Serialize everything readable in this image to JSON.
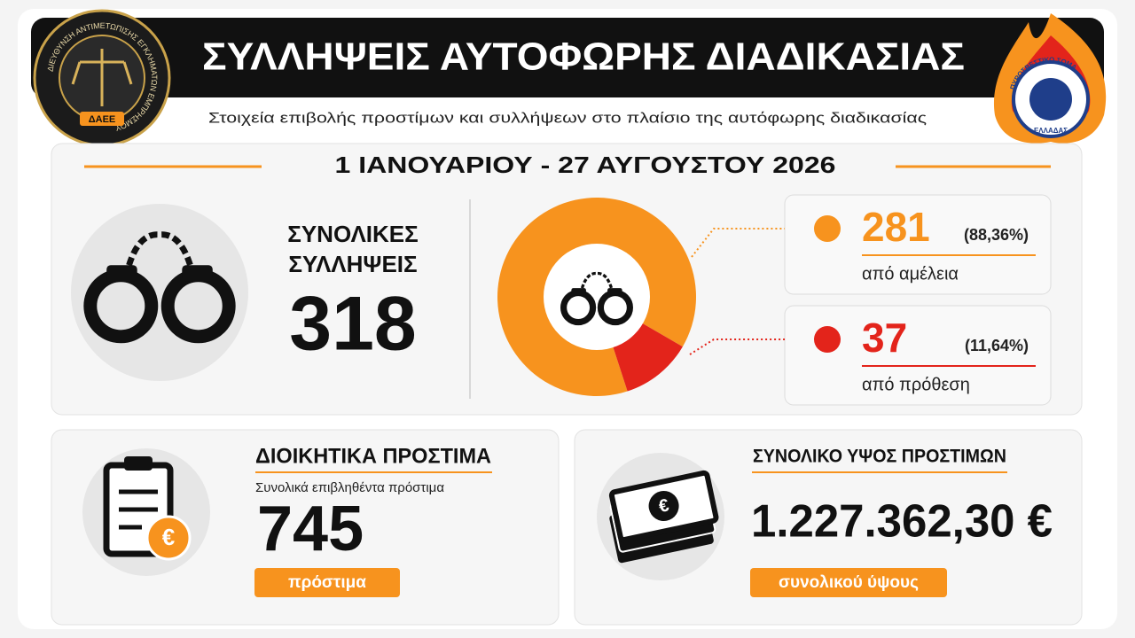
{
  "header": {
    "title": "ΣΥΛΛΗΨΕΙΣ ΑΥΤΟΦΩΡΗΣ ΔΙΑΔΙΚΑΣΙΑΣ",
    "subtitle": "Στοιχεία επιβολής προστίμων και συλλήψεων στο πλαίσιο της αυτόφωρης διαδικασίας"
  },
  "logos": {
    "left_ring": "ΔΙΕΥΘΥΝΣΗ ΑΝΤΙΜΕΤΩΠΙΣΗΣ ΕΓΚΛΗΜΑΤΩΝ ΕΜΠΡΗΣΜΟΥ",
    "left_badge": "ΔΑΕΕ",
    "right_ring": "ΠΥΡΟΣΒΕΣΤΙΚΟ ΣΩΜΑ",
    "right_bottom": "ΕΛΛΑΔΑΣ"
  },
  "period": "1 ΙΑΝΟΥΑΡΙΟΥ - 27 ΑΥΓΟΥΣΤΟΥ 2026",
  "arrests": {
    "label_line1": "ΣΥΝΟΛΙΚΕΣ",
    "label_line2": "ΣΥΛΛΗΨΕΙΣ",
    "total": 318
  },
  "breakdown": [
    {
      "value": 281,
      "percent_label": "(88,36%)",
      "label": "από αμέλεια",
      "color": "#f7931e"
    },
    {
      "value": 37,
      "percent_label": "(11,64%)",
      "label": "από πρόθεση",
      "color": "#e3241b"
    }
  ],
  "fines": {
    "title": "ΔΙΟΙΚΗΤΙΚΑ ΠΡΟΣΤΙΜΑ",
    "subtitle": "Συνολικά επιβληθέντα πρόστιμα",
    "count": 745,
    "unit": "πρόστιμα"
  },
  "amount": {
    "title": "ΣΥΝΟΛΙΚΟ ΥΨΟΣ ΠΡΟΣΤΙΜΩΝ",
    "value": "1.227.362,30 €",
    "caption": "συνολικού ύψους"
  }
}
